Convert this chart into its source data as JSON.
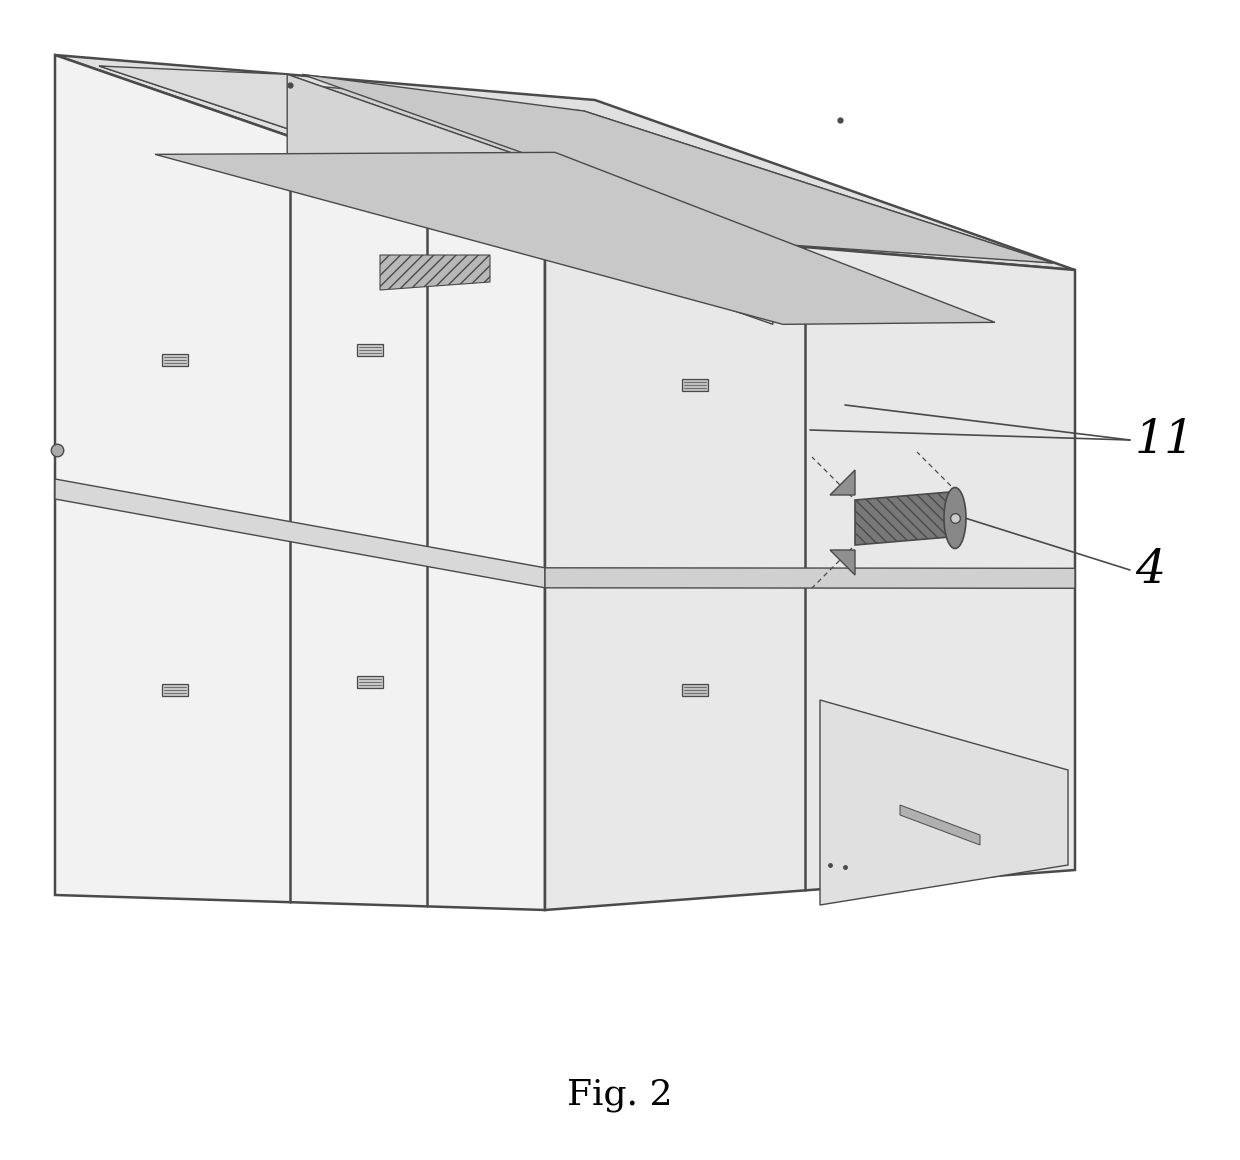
{
  "title": "Fig. 2",
  "label_11": "11",
  "label_4": "4",
  "bg_color": "#ffffff",
  "line_color": "#4a4a4a",
  "fill_top": "#e0e0e0",
  "fill_left": "#f2f2f2",
  "fill_right": "#e8e8e8",
  "fill_inner_top": "#d0d0d0",
  "fill_inner_dark": "#c0c0c0",
  "fill_divider": "#d8d8d8",
  "lw_main": 1.8,
  "lw_thin": 1.0
}
